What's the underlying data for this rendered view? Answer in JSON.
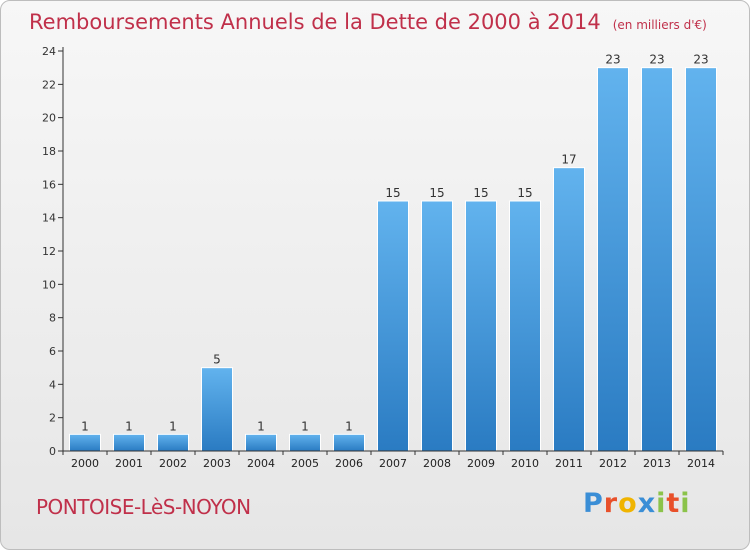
{
  "title": "Remboursements Annuels de la Dette de 2000 à 2014",
  "unit_label": "(en milliers d'€)",
  "commune": "PONTOISE-LèS-NOYON",
  "logo_text": "Proxiti",
  "colors": {
    "title": "#c0304a",
    "bar_light": "#5eb0ec",
    "bar_dark": "#2a7cc4",
    "axis": "#333333"
  },
  "chart_data": {
    "type": "bar",
    "title": "Remboursements Annuels de la Dette de 2000 à 2014",
    "subtitle": "(en milliers d'€)",
    "xlabel": "",
    "ylabel": "",
    "categories": [
      "2000",
      "2001",
      "2002",
      "2003",
      "2004",
      "2005",
      "2006",
      "2007",
      "2008",
      "2009",
      "2010",
      "2011",
      "2012",
      "2013",
      "2014"
    ],
    "values": [
      1,
      1,
      1,
      5,
      1,
      1,
      1,
      15,
      15,
      15,
      15,
      17,
      23,
      23,
      23
    ],
    "data_labels": [
      "1",
      "1",
      "1",
      "5",
      "1",
      "1",
      "1",
      "15",
      "15",
      "15",
      "15",
      "17",
      "23",
      "23",
      "23"
    ],
    "ylim": [
      0,
      24
    ],
    "yticks": [
      0,
      2,
      4,
      6,
      8,
      10,
      12,
      14,
      16,
      18,
      20,
      22,
      24
    ],
    "grid": false
  }
}
